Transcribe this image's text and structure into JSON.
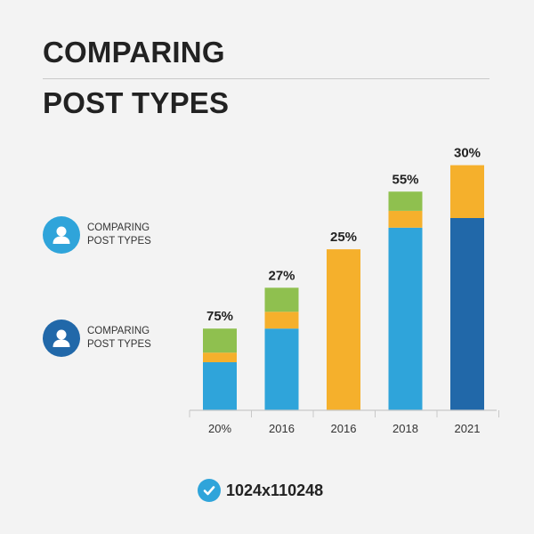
{
  "header": {
    "title_line1": "COMPARING",
    "title_line2": "POST TYPES"
  },
  "legend": [
    {
      "line1": "COMPARING",
      "line2": "POST TYPES",
      "icon": "user-icon",
      "color": "#2fa4da"
    },
    {
      "line1": "COMPARING",
      "line2": "POST TYPES",
      "icon": "user-icon",
      "color": "#2168a9"
    }
  ],
  "footer": {
    "icon": "check-circle-icon",
    "text": "1024x110248"
  },
  "colors": {
    "light_blue": "#2fa4da",
    "dark_blue": "#2168a9",
    "orange": "#f5b02c",
    "green": "#8fc04f",
    "axis": "#c8c8c8"
  },
  "chart_data": {
    "type": "bar",
    "stacked": true,
    "categories": [
      "20%",
      "2016",
      "2016",
      "2018",
      "2021"
    ],
    "data_labels": [
      "75%",
      "27%",
      "25%",
      "55%",
      "30%"
    ],
    "ylim": [
      0,
      100
    ],
    "grid": false,
    "series": [
      {
        "color": "#2fa4da",
        "values": [
          20,
          34,
          0,
          76,
          0
        ]
      },
      {
        "color": "#2168a9",
        "values": [
          0,
          0,
          0,
          0,
          80
        ]
      },
      {
        "color": "#f5b02c",
        "values": [
          4,
          7,
          67,
          7,
          22
        ]
      },
      {
        "color": "#8fc04f",
        "values": [
          10,
          10,
          0,
          8,
          0
        ]
      }
    ]
  }
}
